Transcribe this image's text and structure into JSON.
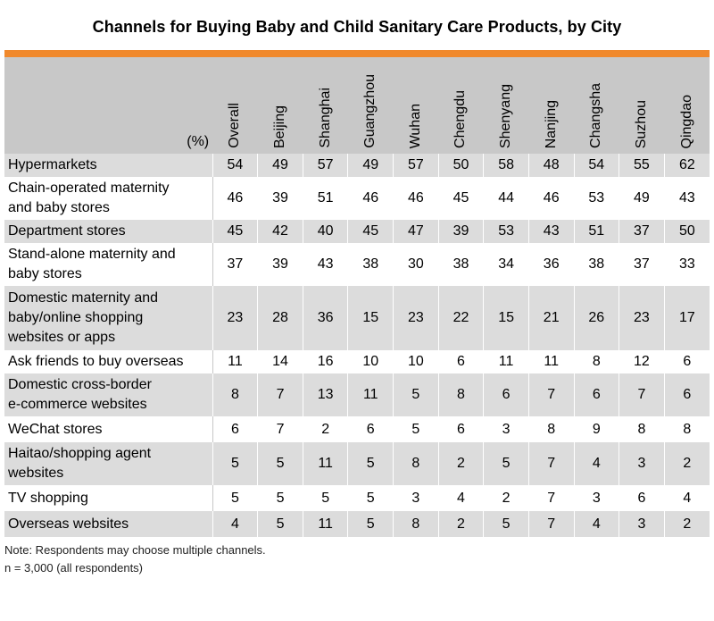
{
  "chart_data": {
    "type": "table",
    "title": "Channels for Buying Baby and Child Sanitary Care Products, by City",
    "unit_label": "(%)",
    "columns": [
      "Overall",
      "Beijing",
      "Shanghai",
      "Guangzhou",
      "Wuhan",
      "Chengdu",
      "Shenyang",
      "Nanjing",
      "Changsha",
      "Suzhou",
      "Qingdao"
    ],
    "rows": [
      {
        "label": [
          "Hypermarkets"
        ],
        "values": [
          54,
          49,
          57,
          49,
          57,
          50,
          58,
          48,
          54,
          55,
          62
        ]
      },
      {
        "label": [
          "Chain-operated maternity",
          "and baby stores"
        ],
        "values": [
          46,
          39,
          51,
          46,
          46,
          45,
          44,
          46,
          53,
          49,
          43
        ]
      },
      {
        "label": [
          "Department stores"
        ],
        "values": [
          45,
          42,
          40,
          45,
          47,
          39,
          53,
          43,
          51,
          37,
          50
        ]
      },
      {
        "label": [
          "Stand-alone maternity and",
          "baby stores"
        ],
        "values": [
          37,
          39,
          43,
          38,
          30,
          38,
          34,
          36,
          38,
          37,
          33
        ]
      },
      {
        "label": [
          "Domestic maternity and",
          "baby/online shopping",
          "websites or apps"
        ],
        "values": [
          23,
          28,
          36,
          15,
          23,
          22,
          15,
          21,
          26,
          23,
          17
        ]
      },
      {
        "label": [
          "Ask friends to buy overseas"
        ],
        "values": [
          11,
          14,
          16,
          10,
          10,
          6,
          11,
          11,
          8,
          12,
          6
        ]
      },
      {
        "label": [
          "Domestic cross-border",
          "e-commerce websites"
        ],
        "values": [
          8,
          7,
          13,
          11,
          5,
          8,
          6,
          7,
          6,
          7,
          6
        ]
      },
      {
        "label": [
          "WeChat stores"
        ],
        "values": [
          6,
          7,
          2,
          6,
          5,
          6,
          3,
          8,
          9,
          8,
          8
        ]
      },
      {
        "label": [
          "Haitao/shopping agent",
          "websites"
        ],
        "values": [
          5,
          5,
          11,
          5,
          8,
          2,
          5,
          7,
          4,
          3,
          2
        ]
      },
      {
        "label": [
          "TV shopping"
        ],
        "values": [
          5,
          5,
          5,
          5,
          3,
          4,
          2,
          7,
          3,
          6,
          4
        ]
      },
      {
        "label": [
          "Overseas websites"
        ],
        "values": [
          4,
          5,
          11,
          5,
          8,
          2,
          5,
          7,
          4,
          3,
          2
        ]
      }
    ]
  },
  "notes": {
    "line1": "Note: Respondents may choose multiple channels.",
    "line2": "n = 3,000 (all respondents)"
  },
  "colors": {
    "accent_bar": "#f0892c",
    "header_bg": "#c8c8c8",
    "shaded_row": "#dcdcdc"
  }
}
